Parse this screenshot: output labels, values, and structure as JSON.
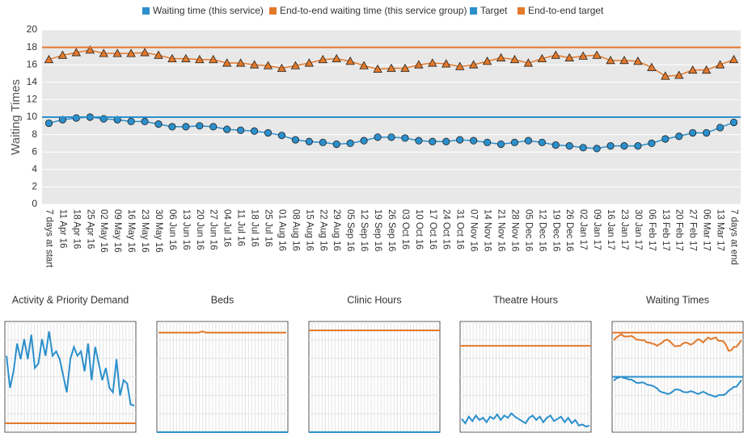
{
  "chart_data": [
    {
      "type": "line",
      "y_label": "Waiting Times",
      "categories": [
        "7 days at start",
        "11 Apr 16",
        "18 Apr 16",
        "25 Apr 16",
        "02 May 16",
        "09 May 16",
        "16 May 16",
        "23 May 16",
        "30 May 16",
        "06 Jun 16",
        "13 Jun 16",
        "20 Jun 16",
        "27 Jun 16",
        "04 Jul 16",
        "11 Jul 16",
        "18 Jul 16",
        "25 Jul 16",
        "01 Aug 16",
        "08 Aug 16",
        "15 Aug 16",
        "22 Aug 16",
        "29 Aug 16",
        "05 Sep 16",
        "12 Sep 16",
        "19 Sep 16",
        "26 Sep 16",
        "03 Oct 16",
        "10 Oct 16",
        "17 Oct 16",
        "24 Oct 16",
        "31 Oct 16",
        "07 Nov 16",
        "14 Nov 16",
        "21 Nov 16",
        "28 Nov 16",
        "05 Dec 16",
        "12 Dec 16",
        "19 Dec 16",
        "26 Dec 16",
        "02 Jan 17",
        "09 Jan 17",
        "16 Jan 17",
        "23 Jan 17",
        "30 Jan 17",
        "06 Feb 17",
        "13 Feb 17",
        "20 Feb 17",
        "27 Feb 17",
        "06 Mar 17",
        "13 Mar 17",
        "7 days at end"
      ],
      "series": [
        {
          "name": "Waiting time (this service)",
          "color": "#2b8fcc",
          "marker": "circle",
          "values": [
            9.3,
            9.7,
            9.9,
            10.0,
            9.8,
            9.7,
            9.5,
            9.5,
            9.2,
            8.9,
            8.9,
            9.0,
            8.9,
            8.6,
            8.5,
            8.4,
            8.2,
            7.9,
            7.4,
            7.2,
            7.1,
            6.9,
            7.0,
            7.3,
            7.7,
            7.7,
            7.6,
            7.3,
            7.2,
            7.2,
            7.4,
            7.3,
            7.1,
            6.9,
            7.1,
            7.3,
            7.1,
            6.8,
            6.7,
            6.5,
            6.4,
            6.7,
            6.7,
            6.7,
            7.0,
            7.5,
            7.8,
            8.2,
            8.2,
            8.8,
            9.4
          ]
        },
        {
          "name": "End-to-end waiting time (this service group)",
          "color": "#e3792b",
          "marker": "triangle",
          "values": [
            16.6,
            17.1,
            17.4,
            17.7,
            17.3,
            17.3,
            17.3,
            17.4,
            17.1,
            16.7,
            16.7,
            16.6,
            16.6,
            16.2,
            16.2,
            16.0,
            15.9,
            15.6,
            15.9,
            16.2,
            16.6,
            16.7,
            16.4,
            15.9,
            15.5,
            15.6,
            15.6,
            16.0,
            16.2,
            16.1,
            15.8,
            16.0,
            16.4,
            16.8,
            16.6,
            16.2,
            16.7,
            17.1,
            16.8,
            17.0,
            17.1,
            16.5,
            16.5,
            16.4,
            15.7,
            14.7,
            14.8,
            15.4,
            15.4,
            16.0,
            16.6
          ]
        },
        {
          "name": "Target",
          "color": "#2b8fcc",
          "value": 10
        },
        {
          "name": "End-to-end target",
          "color": "#e3792b",
          "value": 18
        }
      ],
      "ylim": [
        0,
        20
      ],
      "yticks": [
        0,
        2,
        4,
        6,
        8,
        10,
        12,
        14,
        16,
        18,
        20
      ],
      "grid": true,
      "legend": "top"
    },
    {
      "type": "line",
      "title": "Activity & Priority Demand",
      "ylim": [
        0,
        100
      ],
      "series": [
        {
          "color": "#2b8fcc",
          "values": [
            69,
            40,
            55,
            80,
            66,
            84,
            66,
            88,
            58,
            62,
            84,
            69,
            91,
            69,
            73,
            66,
            51,
            36,
            66,
            77,
            69,
            73,
            55,
            80,
            47,
            77,
            62,
            47,
            58,
            40,
            36,
            66,
            33,
            47,
            44,
            25,
            24
          ]
        },
        {
          "color": "#e3792b",
          "value": 8
        }
      ]
    },
    {
      "type": "line",
      "title": "Beds",
      "ylim": [
        0,
        100
      ],
      "series": [
        {
          "color": "#e3792b",
          "values": [
            90,
            90,
            90,
            90,
            90,
            90,
            90,
            90,
            90,
            90,
            90,
            90,
            91,
            90,
            90,
            90,
            90,
            90,
            90,
            90,
            90,
            90,
            90,
            90,
            90,
            90,
            90,
            90,
            90,
            90,
            90,
            90,
            90,
            90,
            90,
            90
          ]
        },
        {
          "color": "#2b8fcc",
          "value": 0
        }
      ]
    },
    {
      "type": "line",
      "title": "Clinic Hours",
      "ylim": [
        0,
        100
      ],
      "series": [
        {
          "color": "#e3792b",
          "value": 92
        },
        {
          "color": "#2b8fcc",
          "value": 0
        }
      ]
    },
    {
      "type": "line",
      "title": "Theatre Hours",
      "ylim": [
        0,
        100
      ],
      "series": [
        {
          "color": "#e3792b",
          "value": 78
        },
        {
          "color": "#2b8fcc",
          "values": [
            12,
            8,
            14,
            10,
            15,
            11,
            13,
            9,
            14,
            12,
            16,
            11,
            15,
            13,
            17,
            14,
            12,
            10,
            8,
            13,
            15,
            11,
            14,
            9,
            13,
            15,
            10,
            12,
            14,
            9,
            13,
            8,
            11,
            6,
            7,
            5,
            6
          ]
        }
      ]
    },
    {
      "type": "line",
      "title": "Waiting Times",
      "ylim": [
        0,
        20
      ],
      "series": [
        {
          "color": "#e3792b",
          "value": 18
        },
        {
          "color": "#2b8fcc",
          "value": 10
        },
        {
          "color": "#e3792b",
          "values": [
            16.6,
            17.1,
            17.4,
            17.7,
            17.3,
            17.3,
            17.3,
            17.4,
            17.1,
            16.7,
            16.7,
            16.6,
            16.6,
            16.2,
            16.2,
            16.0,
            15.9,
            15.6,
            15.9,
            16.2,
            16.6,
            16.7,
            16.4,
            15.9,
            15.5,
            15.6,
            15.6,
            16.0,
            16.2,
            16.1,
            15.8,
            16.0,
            16.4,
            16.8,
            16.6,
            16.2,
            16.7,
            17.1,
            16.8,
            17.0,
            17.1,
            16.5,
            16.5,
            16.4,
            15.7,
            14.7,
            14.8,
            15.4,
            15.4,
            16.0,
            16.6
          ]
        },
        {
          "color": "#2b8fcc",
          "values": [
            9.3,
            9.7,
            9.9,
            10.0,
            9.8,
            9.7,
            9.5,
            9.5,
            9.2,
            8.9,
            8.9,
            9.0,
            8.9,
            8.6,
            8.5,
            8.4,
            8.2,
            7.9,
            7.4,
            7.2,
            7.1,
            6.9,
            7.0,
            7.3,
            7.7,
            7.7,
            7.6,
            7.3,
            7.2,
            7.2,
            7.4,
            7.3,
            7.1,
            6.9,
            7.1,
            7.3,
            7.1,
            6.8,
            6.7,
            6.5,
            6.4,
            6.7,
            6.7,
            6.7,
            7.0,
            7.5,
            7.8,
            8.2,
            8.2,
            8.8,
            9.4
          ]
        }
      ]
    }
  ]
}
